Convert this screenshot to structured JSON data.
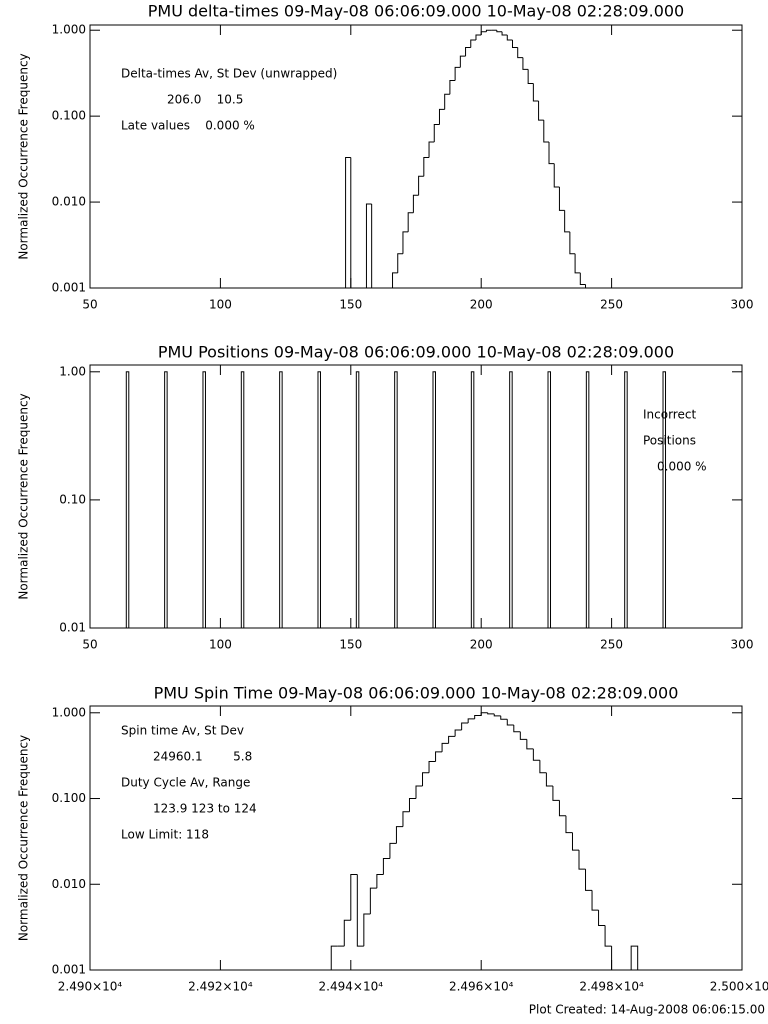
{
  "chart_data": [
    {
      "type": "histogram",
      "title": "PMU delta-times 09-May-08 06:06:09.000 10-May-08 02:28:09.000",
      "y_label": "Normalized Occurrence Frequency",
      "log_y": true,
      "grid": false,
      "color": "#000000",
      "xlim": [
        50,
        300
      ],
      "xticks": [
        50,
        100,
        150,
        200,
        250,
        300
      ],
      "ylim": [
        0.001,
        1.15
      ],
      "yticks": [
        0.001,
        {
          "value": 0.01,
          "label": "0.010"
        },
        {
          "value": 0.1,
          "label": "0.100"
        },
        {
          "value": 1,
          "label": "1.000"
        }
      ],
      "annotations": [
        "Delta-times Av, St Dev (unwrapped)",
        "206.0    10.5",
        "Late values    0.000 %"
      ],
      "bins": [
        148,
        150,
        152,
        154,
        156,
        158,
        160,
        162,
        164,
        166,
        168,
        170,
        172,
        174,
        176,
        178,
        180,
        182,
        184,
        186,
        188,
        190,
        192,
        194,
        196,
        198,
        200,
        202,
        204,
        206,
        208,
        210,
        212,
        214,
        216,
        218,
        220,
        222,
        224,
        226,
        228,
        230,
        232,
        234,
        236,
        238,
        240,
        242
      ],
      "values": [
        0.033,
        0,
        0,
        0,
        0.0095,
        0,
        0,
        0,
        0,
        0.0015,
        0.0025,
        0.0045,
        0.0075,
        0.012,
        0.02,
        0.033,
        0.05,
        0.08,
        0.12,
        0.18,
        0.26,
        0.37,
        0.5,
        0.63,
        0.77,
        0.88,
        0.96,
        1.0,
        1.0,
        0.96,
        0.88,
        0.77,
        0.63,
        0.48,
        0.35,
        0.24,
        0.15,
        0.09,
        0.05,
        0.028,
        0.015,
        0.008,
        0.0045,
        0.0025,
        0.0015,
        0.0011,
        0
      ]
    },
    {
      "type": "spike",
      "title": "PMU Positions 09-May-08 06:06:09.000 10-May-08 02:28:09.000",
      "y_label": "Normalized Occurrence Frequency",
      "log_y": true,
      "grid": false,
      "color": "#000000",
      "xlim": [
        50,
        300
      ],
      "xticks": [
        50,
        100,
        150,
        200,
        250,
        300
      ],
      "ylim": [
        0.01,
        1.13
      ],
      "yticks": [
        0.01,
        {
          "value": 0.1,
          "label": "0.10"
        },
        {
          "value": 1,
          "label": "1.00"
        }
      ],
      "annotations": [
        "Incorrect",
        "Positions",
        "0.000 %"
      ],
      "x": [
        64.3,
        79,
        93.7,
        108.4,
        123.1,
        137.8,
        152.5,
        167.2,
        181.9,
        196.6,
        211.3,
        226,
        240.7,
        255.4,
        270.1
      ],
      "values": [
        1,
        1,
        1,
        1,
        1,
        1,
        1,
        1,
        1,
        1,
        1,
        1,
        1,
        1,
        1
      ]
    },
    {
      "type": "histogram",
      "title": "PMU Spin Time 09-May-08 06:06:09.000 10-May-08 02:28:09.000",
      "y_label": "Normalized Occurrence Frequency",
      "log_y": true,
      "grid": false,
      "color": "#000000",
      "xlim": [
        24900,
        25000
      ],
      "xticks": [
        {
          "value": 24900,
          "label": "2.490×10⁴"
        },
        {
          "value": 24920,
          "label": "2.492×10⁴"
        },
        {
          "value": 24940,
          "label": "2.494×10⁴"
        },
        {
          "value": 24960,
          "label": "2.496×10⁴"
        },
        {
          "value": 24980,
          "label": "2.498×10⁴"
        },
        {
          "value": 25000,
          "label": "2.500×10⁴"
        }
      ],
      "ylim": [
        0.001,
        1.2
      ],
      "yticks": [
        0.001,
        {
          "value": 0.01,
          "label": "0.010"
        },
        {
          "value": 0.1,
          "label": "0.100"
        },
        {
          "value": 1,
          "label": "1.000"
        }
      ],
      "annotations": [
        "Spin time Av, St Dev",
        "24960.1        5.8",
        "Duty Cycle Av, Range",
        "123.9 123 to 124",
        "Low Limit: 118"
      ],
      "bins": [
        24937,
        24938,
        24939,
        24940,
        24941,
        24942,
        24943,
        24944,
        24945,
        24946,
        24947,
        24948,
        24949,
        24950,
        24951,
        24952,
        24953,
        24954,
        24955,
        24956,
        24957,
        24958,
        24959,
        24960,
        24961,
        24962,
        24963,
        24964,
        24965,
        24966,
        24967,
        24968,
        24969,
        24970,
        24971,
        24972,
        24973,
        24974,
        24975,
        24976,
        24977,
        24978,
        24979,
        24980,
        24981,
        24982,
        24983,
        24984
      ],
      "values": [
        0.0019,
        0.0019,
        0.0038,
        0.013,
        0.0019,
        0.0045,
        0.009,
        0.013,
        0.02,
        0.03,
        0.047,
        0.07,
        0.1,
        0.14,
        0.2,
        0.27,
        0.35,
        0.44,
        0.53,
        0.63,
        0.76,
        0.85,
        0.93,
        1.0,
        0.97,
        0.92,
        0.84,
        0.72,
        0.6,
        0.49,
        0.38,
        0.28,
        0.2,
        0.14,
        0.095,
        0.063,
        0.04,
        0.025,
        0.015,
        0.0085,
        0.005,
        0.0033,
        0.0019,
        0,
        0,
        0,
        0.0019
      ]
    }
  ],
  "footer": "Plot Created: 14-Aug-2008 06:06:15.00"
}
